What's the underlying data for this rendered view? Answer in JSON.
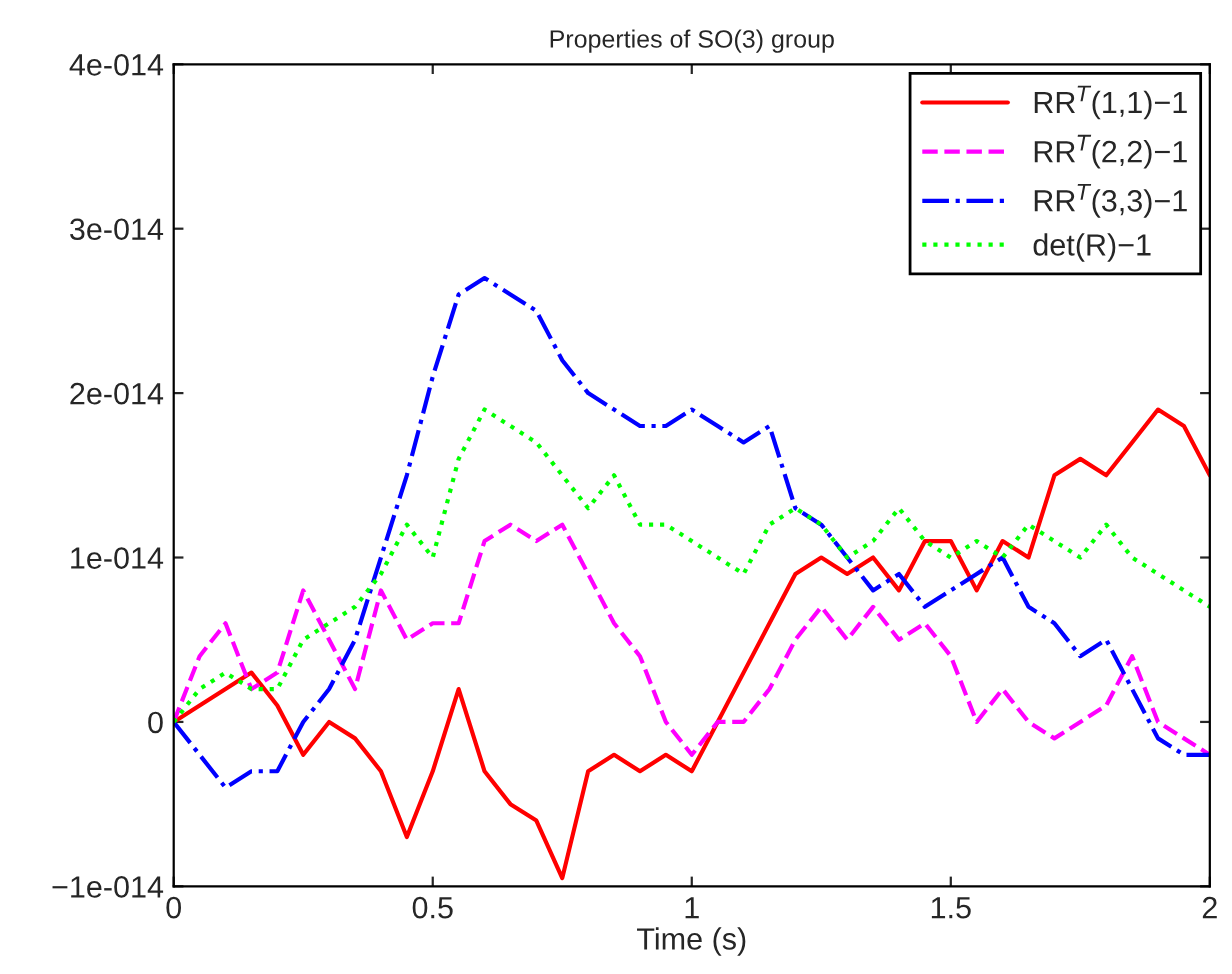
{
  "chart_data": {
    "type": "line",
    "title": "Properties of SO(3) group",
    "xlabel": "Time (s)",
    "x": [
      0,
      0.05,
      0.1,
      0.15,
      0.2,
      0.25,
      0.3,
      0.35,
      0.4,
      0.45,
      0.5,
      0.55,
      0.6,
      0.65,
      0.7,
      0.75,
      0.8,
      0.85,
      0.9,
      0.95,
      1.0,
      1.05,
      1.1,
      1.15,
      1.2,
      1.25,
      1.3,
      1.35,
      1.4,
      1.45,
      1.5,
      1.55,
      1.6,
      1.65,
      1.7,
      1.75,
      1.8,
      1.85,
      1.9,
      1.95,
      2.0
    ],
    "series": [
      {
        "name": "RR$^{T}$(1,1)−1",
        "color": "#ff0000",
        "line_style": "solid",
        "values": [
          0,
          1e-15,
          2e-15,
          3e-15,
          1e-15,
          -2e-15,
          0.0,
          -1e-15,
          -3e-15,
          -7e-15,
          -3e-15,
          2e-15,
          -3e-15,
          -5e-15,
          -6e-15,
          -9.5e-15,
          -3e-15,
          -2e-15,
          -3e-15,
          -2e-15,
          -3e-15,
          0.0,
          3e-15,
          6e-15,
          9e-15,
          1e-14,
          9e-15,
          1e-14,
          8e-15,
          1.1e-14,
          1.1e-14,
          8e-15,
          1.1e-14,
          1e-14,
          1.5e-14,
          1.6e-14,
          1.5e-14,
          1.7e-14,
          1.9e-14,
          1.8e-14,
          1.5e-14
        ]
      },
      {
        "name": "RR$^{T}$(2,2)−1",
        "color": "#ff00ff",
        "line_style": "dashed",
        "values": [
          0,
          4e-15,
          6e-15,
          2e-15,
          3e-15,
          8e-15,
          5e-15,
          2e-15,
          8e-15,
          5e-15,
          6e-15,
          6e-15,
          1.1e-14,
          1.2e-14,
          1.1e-14,
          1.2e-14,
          9e-15,
          6e-15,
          4e-15,
          0.0,
          -2e-15,
          0.0,
          0.0,
          2e-15,
          5e-15,
          7e-15,
          5e-15,
          7e-15,
          5e-15,
          6e-15,
          4e-15,
          0.0,
          2e-15,
          0.0,
          -1e-15,
          0.0,
          1e-15,
          4e-15,
          0.0,
          -1e-15,
          -2e-15
        ]
      },
      {
        "name": "RR$^{T}$(3,3)−1",
        "color": "#0000ff",
        "line_style": "dashdot",
        "values": [
          0,
          -2e-15,
          -4e-15,
          -3e-15,
          -3e-15,
          0.0,
          2e-15,
          5e-15,
          1e-14,
          1.5e-14,
          2.1e-14,
          2.6e-14,
          2.7e-14,
          2.6e-14,
          2.5e-14,
          2.2e-14,
          2e-14,
          1.9e-14,
          1.8e-14,
          1.8e-14,
          1.9e-14,
          1.8e-14,
          1.7e-14,
          1.8e-14,
          1.3e-14,
          1.2e-14,
          1e-14,
          8e-15,
          9e-15,
          7e-15,
          8e-15,
          9e-15,
          1e-14,
          7e-15,
          6e-15,
          4e-15,
          5e-15,
          2e-15,
          -1e-15,
          -2e-15,
          -2e-15
        ]
      },
      {
        "name": "det(R)−1",
        "color": "#00ff00",
        "line_style": "dotted",
        "values": [
          0,
          2e-15,
          3e-15,
          2e-15,
          2e-15,
          5e-15,
          6e-15,
          7e-15,
          9e-15,
          1.2e-14,
          1e-14,
          1.6e-14,
          1.9e-14,
          1.8e-14,
          1.7e-14,
          1.5e-14,
          1.3e-14,
          1.5e-14,
          1.2e-14,
          1.2e-14,
          1.1e-14,
          1e-14,
          9e-15,
          1.2e-14,
          1.3e-14,
          1.2e-14,
          1e-14,
          1.1e-14,
          1.3e-14,
          1.1e-14,
          1e-14,
          1.1e-14,
          1e-14,
          1.2e-14,
          1.1e-14,
          1e-14,
          1.2e-14,
          1e-14,
          9e-15,
          8e-15,
          7e-15
        ]
      }
    ],
    "xlim": [
      0,
      2
    ],
    "ylim": [
      -1e-14,
      4e-14
    ],
    "xticks": [
      0,
      {
        "value": 0.5,
        "label": "0.5"
      },
      1,
      {
        "value": 1.5,
        "label": "1.5"
      },
      2
    ],
    "yticks": [
      {
        "value": -1e-14,
        "label": "−1e-014"
      },
      0,
      {
        "value": 1e-14,
        "label": "1e-014"
      },
      {
        "value": 2e-14,
        "label": "2e-014"
      },
      {
        "value": 3e-14,
        "label": "3e-014"
      },
      {
        "value": 4e-14,
        "label": "4e-014"
      }
    ],
    "grid": false,
    "legend": "top right"
  }
}
